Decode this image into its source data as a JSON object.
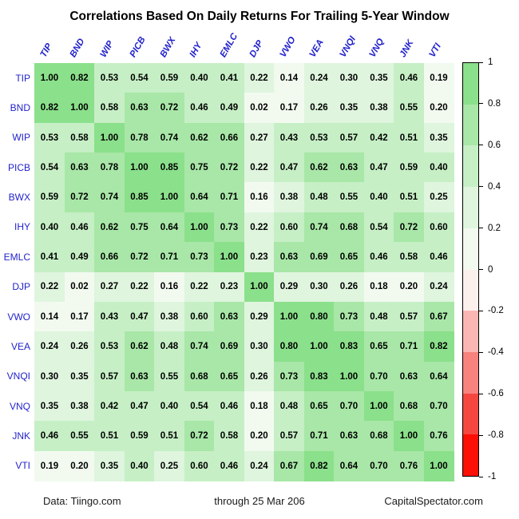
{
  "title": "Correlations Based On Daily Returns For Trailing 5-Year Window",
  "footer": {
    "left": "Data: Tiingo.com",
    "center": "through 25 Mar 206",
    "right": "CapitalSpectator.com"
  },
  "chart_data": {
    "type": "heatmap",
    "title": "Correlations Based On Daily Returns For Trailing 5-Year Window",
    "categories": [
      "TIP",
      "BND",
      "WIP",
      "PICB",
      "BWX",
      "IHY",
      "EMLC",
      "DJP",
      "VWO",
      "VEA",
      "VNQI",
      "VNQ",
      "JNK",
      "VTI"
    ],
    "matrix": [
      [
        1.0,
        0.82,
        0.53,
        0.54,
        0.59,
        0.4,
        0.41,
        0.22,
        0.14,
        0.24,
        0.3,
        0.35,
        0.46,
        0.19
      ],
      [
        0.82,
        1.0,
        0.58,
        0.63,
        0.72,
        0.46,
        0.49,
        0.02,
        0.17,
        0.26,
        0.35,
        0.38,
        0.55,
        0.2
      ],
      [
        0.53,
        0.58,
        1.0,
        0.78,
        0.74,
        0.62,
        0.66,
        0.27,
        0.43,
        0.53,
        0.57,
        0.42,
        0.51,
        0.35
      ],
      [
        0.54,
        0.63,
        0.78,
        1.0,
        0.85,
        0.75,
        0.72,
        0.22,
        0.47,
        0.62,
        0.63,
        0.47,
        0.59,
        0.4
      ],
      [
        0.59,
        0.72,
        0.74,
        0.85,
        1.0,
        0.64,
        0.71,
        0.16,
        0.38,
        0.48,
        0.55,
        0.4,
        0.51,
        0.25
      ],
      [
        0.4,
        0.46,
        0.62,
        0.75,
        0.64,
        1.0,
        0.73,
        0.22,
        0.6,
        0.74,
        0.68,
        0.54,
        0.72,
        0.6
      ],
      [
        0.41,
        0.49,
        0.66,
        0.72,
        0.71,
        0.73,
        1.0,
        0.23,
        0.63,
        0.69,
        0.65,
        0.46,
        0.58,
        0.46
      ],
      [
        0.22,
        0.02,
        0.27,
        0.22,
        0.16,
        0.22,
        0.23,
        1.0,
        0.29,
        0.3,
        0.26,
        0.18,
        0.2,
        0.24
      ],
      [
        0.14,
        0.17,
        0.43,
        0.47,
        0.38,
        0.6,
        0.63,
        0.29,
        1.0,
        0.8,
        0.73,
        0.48,
        0.57,
        0.67
      ],
      [
        0.24,
        0.26,
        0.53,
        0.62,
        0.48,
        0.74,
        0.69,
        0.3,
        0.8,
        1.0,
        0.83,
        0.65,
        0.71,
        0.82
      ],
      [
        0.3,
        0.35,
        0.57,
        0.63,
        0.55,
        0.68,
        0.65,
        0.26,
        0.73,
        0.83,
        1.0,
        0.7,
        0.63,
        0.64
      ],
      [
        0.35,
        0.38,
        0.42,
        0.47,
        0.4,
        0.54,
        0.46,
        0.18,
        0.48,
        0.65,
        0.7,
        1.0,
        0.68,
        0.7
      ],
      [
        0.46,
        0.55,
        0.51,
        0.59,
        0.51,
        0.72,
        0.58,
        0.2,
        0.57,
        0.71,
        0.63,
        0.68,
        1.0,
        0.76
      ],
      [
        0.19,
        0.2,
        0.35,
        0.4,
        0.25,
        0.6,
        0.46,
        0.24,
        0.67,
        0.82,
        0.64,
        0.7,
        0.76,
        1.0
      ]
    ],
    "value_range": [
      -1,
      1
    ],
    "colorbar_ticks": [
      "1",
      "0.8",
      "0.6",
      "0.4",
      "0.2",
      "0",
      "-0.2",
      "-0.4",
      "-0.6",
      "-0.8",
      "-1"
    ],
    "legend_position": "right",
    "grid": false,
    "positive_band_colors": [
      "#F2FAF0",
      "#DFF5DE",
      "#C6EFC5",
      "#A8E7A7",
      "#8BE08B"
    ],
    "negative_band_colors": [
      "#FCF0ED",
      "#FAB6B3",
      "#F8827E",
      "#F64640",
      "#FB0F06"
    ],
    "label_color": "#2222CC",
    "value_text_color": "#000000"
  }
}
